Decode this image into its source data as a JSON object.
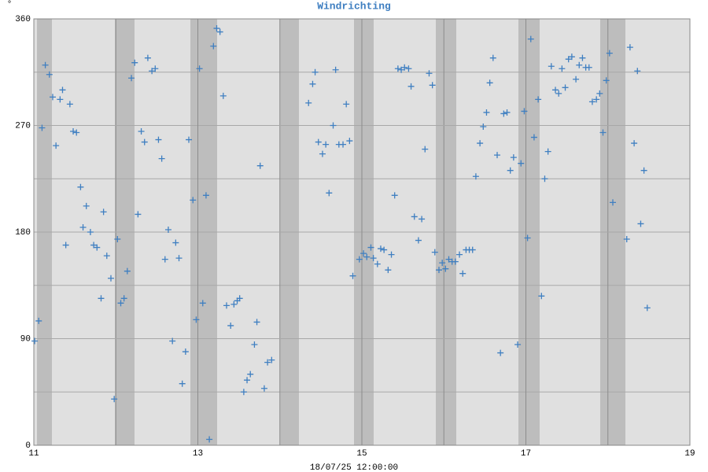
{
  "chart_data": {
    "type": "scatter",
    "title": "Windrichting",
    "xlabel": "18/07/25 12:00:00",
    "ylabel": "°",
    "color": "#3f7fc1",
    "xlim": [
      11,
      19
    ],
    "xticks": [
      11,
      13,
      15,
      17,
      19
    ],
    "xminorticks": [
      12,
      14,
      16,
      18
    ],
    "ylim": [
      0,
      360
    ],
    "yticks": [
      0,
      90,
      180,
      270,
      360
    ],
    "yminorticks": [
      45,
      135,
      225,
      315
    ],
    "grid": true,
    "x": [
      11.01,
      11.06,
      11.1,
      11.14,
      11.19,
      11.23,
      11.27,
      11.32,
      11.35,
      11.39,
      11.44,
      11.48,
      11.52,
      11.57,
      11.6,
      11.64,
      11.69,
      11.73,
      11.77,
      11.82,
      11.85,
      11.89,
      11.94,
      11.98,
      12.02,
      12.06,
      12.1,
      12.14,
      12.19,
      12.23,
      12.27,
      12.31,
      12.35,
      12.39,
      12.44,
      12.48,
      12.52,
      12.56,
      12.6,
      12.64,
      12.69,
      12.73,
      12.77,
      12.81,
      12.85,
      12.89,
      12.94,
      12.98,
      13.02,
      13.06,
      13.1,
      13.14,
      13.19,
      13.23,
      13.27,
      13.31,
      13.35,
      13.4,
      13.44,
      13.48,
      13.51,
      13.56,
      13.6,
      13.64,
      13.69,
      13.72,
      13.76,
      13.81,
      13.85,
      13.9,
      14.35,
      14.4,
      14.43,
      14.47,
      14.52,
      14.56,
      14.6,
      14.65,
      14.68,
      14.72,
      14.77,
      14.81,
      14.85,
      14.89,
      14.97,
      15.02,
      15.06,
      15.11,
      15.14,
      15.19,
      15.23,
      15.27,
      15.32,
      15.36,
      15.4,
      15.44,
      15.48,
      15.52,
      15.57,
      15.6,
      15.64,
      15.69,
      15.73,
      15.77,
      15.82,
      15.86,
      15.89,
      15.94,
      15.98,
      16.02,
      16.06,
      16.1,
      16.14,
      16.19,
      16.23,
      16.27,
      16.31,
      16.35,
      16.39,
      16.44,
      16.48,
      16.52,
      16.56,
      16.6,
      16.65,
      16.69,
      16.73,
      16.77,
      16.81,
      16.85,
      16.9,
      16.94,
      16.98,
      17.02,
      17.06,
      17.1,
      17.15,
      17.19,
      17.23,
      17.27,
      17.31,
      17.36,
      17.4,
      17.44,
      17.48,
      17.52,
      17.56,
      17.61,
      17.65,
      17.69,
      17.73,
      17.77,
      17.81,
      17.86,
      17.9,
      17.94,
      17.98,
      18.02,
      18.06,
      18.23,
      18.27,
      18.32,
      18.36,
      18.4,
      18.44,
      18.48
    ],
    "values": [
      88,
      105,
      268,
      321,
      313,
      294,
      253,
      292,
      300,
      169,
      288,
      265,
      264,
      218,
      184,
      202,
      180,
      169,
      167,
      124,
      197,
      160,
      141,
      39,
      174,
      120,
      124,
      147,
      310,
      323,
      195,
      265,
      256,
      327,
      316,
      318,
      258,
      242,
      157,
      182,
      88,
      171,
      158,
      52,
      79,
      258,
      207,
      106,
      318,
      120,
      211,
      5,
      337,
      352,
      349,
      295,
      118,
      101,
      119,
      122,
      124,
      45,
      55,
      60,
      85,
      104,
      236,
      48,
      70,
      72,
      289,
      305,
      315,
      256,
      246,
      254,
      213,
      270,
      317,
      254,
      254,
      288,
      257,
      143,
      157,
      162,
      159,
      167,
      158,
      153,
      166,
      165,
      148,
      161,
      211,
      318,
      317,
      319,
      318,
      303,
      193,
      173,
      191,
      250,
      314,
      304,
      163,
      148,
      154,
      149,
      157,
      155,
      155,
      161,
      145,
      165,
      165,
      165,
      227,
      255,
      269,
      281,
      306,
      327,
      245,
      78,
      280,
      281,
      232,
      243,
      85,
      238,
      282,
      175,
      343,
      260,
      292,
      126,
      225,
      248,
      320,
      300,
      297,
      318,
      302,
      326,
      328,
      309,
      321,
      327,
      319,
      319,
      290,
      292,
      297,
      264,
      308,
      331,
      205,
      174,
      336,
      255,
      316,
      187,
      232,
      116
    ]
  }
}
